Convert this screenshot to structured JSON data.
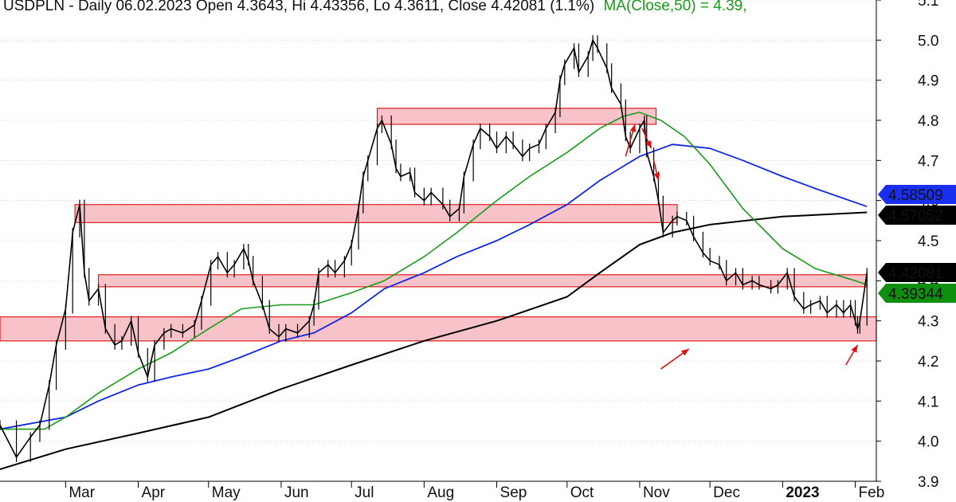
{
  "chart_data": {
    "type": "line",
    "title": "USDPLN - Daily 06.02.2023 Open 4.3643, Hi 4.43356, Lo 4.3611, Close 4.42081 (1.1%)",
    "title_ma": "MA(Close,50) = 4.39,",
    "colors": {
      "price": "#000000",
      "ma50": "#1a9a1a",
      "ma100": "#1428e0",
      "ma200": "#000000",
      "zone_fill": "#f7c2c8",
      "zone_stroke": "#e02020",
      "arrow": "#e01010",
      "label_close_bg": "#000000",
      "label_ma50_bg": "#0f8f0f",
      "label_ma100_bg": "#1a2ef0",
      "grid": "#bbbbbb"
    },
    "y_axis": {
      "range": [
        3.9,
        5.1
      ],
      "ticks": [
        "3.9",
        "4.0",
        "4.1",
        "4.2",
        "4.3",
        "4.4",
        "4.5",
        "4.6",
        "4.7",
        "4.8",
        "4.9",
        "5.0",
        "5.1"
      ],
      "side": "right"
    },
    "x_axis": {
      "range": [
        "2022-02-01",
        "2023-02-10"
      ],
      "labels": [
        {
          "text": "Mar",
          "date": "2022-03-01",
          "bold": false
        },
        {
          "text": "Apr",
          "date": "2022-04-01",
          "bold": false
        },
        {
          "text": "May",
          "date": "2022-05-01",
          "bold": false
        },
        {
          "text": "Jun",
          "date": "2022-06-01",
          "bold": false
        },
        {
          "text": "Jul",
          "date": "2022-07-01",
          "bold": false
        },
        {
          "text": "Aug",
          "date": "2022-08-01",
          "bold": false
        },
        {
          "text": "Sep",
          "date": "2022-09-01",
          "bold": false
        },
        {
          "text": "Oct",
          "date": "2022-10-01",
          "bold": false
        },
        {
          "text": "Nov",
          "date": "2022-11-01",
          "bold": false
        },
        {
          "text": "Dec",
          "date": "2022-12-01",
          "bold": false
        },
        {
          "text": "2023",
          "date": "2023-01-01",
          "bold": true
        },
        {
          "text": "Feb",
          "date": "2023-02-01",
          "bold": false
        }
      ]
    },
    "price_series": [
      [
        "2022-02-01",
        4.04
      ],
      [
        "2022-02-08",
        3.96
      ],
      [
        "2022-02-14",
        4.01
      ],
      [
        "2022-02-18",
        4.04
      ],
      [
        "2022-02-22",
        4.14
      ],
      [
        "2022-02-25",
        4.24
      ],
      [
        "2022-03-01",
        4.33
      ],
      [
        "2022-03-04",
        4.52
      ],
      [
        "2022-03-07",
        4.59
      ],
      [
        "2022-03-09",
        4.42
      ],
      [
        "2022-03-11",
        4.35
      ],
      [
        "2022-03-15",
        4.38
      ],
      [
        "2022-03-18",
        4.28
      ],
      [
        "2022-03-22",
        4.24
      ],
      [
        "2022-03-25",
        4.25
      ],
      [
        "2022-03-29",
        4.3
      ],
      [
        "2022-04-01",
        4.22
      ],
      [
        "2022-04-05",
        4.16
      ],
      [
        "2022-04-08",
        4.24
      ],
      [
        "2022-04-12",
        4.27
      ],
      [
        "2022-04-15",
        4.28
      ],
      [
        "2022-04-20",
        4.27
      ],
      [
        "2022-04-25",
        4.29
      ],
      [
        "2022-04-28",
        4.35
      ],
      [
        "2022-05-02",
        4.44
      ],
      [
        "2022-05-05",
        4.46
      ],
      [
        "2022-05-09",
        4.42
      ],
      [
        "2022-05-12",
        4.44
      ],
      [
        "2022-05-16",
        4.48
      ],
      [
        "2022-05-18",
        4.45
      ],
      [
        "2022-05-20",
        4.4
      ],
      [
        "2022-05-24",
        4.34
      ],
      [
        "2022-05-27",
        4.28
      ],
      [
        "2022-05-31",
        4.26
      ],
      [
        "2022-06-03",
        4.28
      ],
      [
        "2022-06-08",
        4.27
      ],
      [
        "2022-06-13",
        4.3
      ],
      [
        "2022-06-15",
        4.34
      ],
      [
        "2022-06-17",
        4.42
      ],
      [
        "2022-06-21",
        4.44
      ],
      [
        "2022-06-24",
        4.42
      ],
      [
        "2022-06-28",
        4.45
      ],
      [
        "2022-07-01",
        4.49
      ],
      [
        "2022-07-04",
        4.58
      ],
      [
        "2022-07-06",
        4.66
      ],
      [
        "2022-07-08",
        4.7
      ],
      [
        "2022-07-12",
        4.78
      ],
      [
        "2022-07-14",
        4.8
      ],
      [
        "2022-07-18",
        4.74
      ],
      [
        "2022-07-20",
        4.68
      ],
      [
        "2022-07-22",
        4.66
      ],
      [
        "2022-07-26",
        4.67
      ],
      [
        "2022-07-28",
        4.62
      ],
      [
        "2022-08-01",
        4.6
      ],
      [
        "2022-08-04",
        4.62
      ],
      [
        "2022-08-09",
        4.59
      ],
      [
        "2022-08-12",
        4.56
      ],
      [
        "2022-08-16",
        4.58
      ],
      [
        "2022-08-18",
        4.66
      ],
      [
        "2022-08-22",
        4.74
      ],
      [
        "2022-08-25",
        4.78
      ],
      [
        "2022-08-29",
        4.76
      ],
      [
        "2022-09-01",
        4.73
      ],
      [
        "2022-09-05",
        4.76
      ],
      [
        "2022-09-08",
        4.74
      ],
      [
        "2022-09-12",
        4.71
      ],
      [
        "2022-09-15",
        4.73
      ],
      [
        "2022-09-19",
        4.74
      ],
      [
        "2022-09-22",
        4.78
      ],
      [
        "2022-09-26",
        4.82
      ],
      [
        "2022-09-28",
        4.9
      ],
      [
        "2022-09-30",
        4.94
      ],
      [
        "2022-10-04",
        4.98
      ],
      [
        "2022-10-06",
        4.92
      ],
      [
        "2022-10-10",
        4.96
      ],
      [
        "2022-10-12",
        5.0
      ],
      [
        "2022-10-14",
        4.98
      ],
      [
        "2022-10-18",
        4.93
      ],
      [
        "2022-10-20",
        4.88
      ],
      [
        "2022-10-24",
        4.84
      ],
      [
        "2022-10-26",
        4.76
      ],
      [
        "2022-10-28",
        4.73
      ],
      [
        "2022-11-01",
        4.78
      ],
      [
        "2022-11-03",
        4.8
      ],
      [
        "2022-11-04",
        4.72
      ],
      [
        "2022-11-07",
        4.66
      ],
      [
        "2022-11-09",
        4.6
      ],
      [
        "2022-11-11",
        4.52
      ],
      [
        "2022-11-15",
        4.55
      ],
      [
        "2022-11-17",
        4.56
      ],
      [
        "2022-11-21",
        4.55
      ],
      [
        "2022-11-24",
        4.51
      ],
      [
        "2022-11-28",
        4.47
      ],
      [
        "2022-12-01",
        4.45
      ],
      [
        "2022-12-05",
        4.44
      ],
      [
        "2022-12-08",
        4.4
      ],
      [
        "2022-12-12",
        4.42
      ],
      [
        "2022-12-15",
        4.39
      ],
      [
        "2022-12-19",
        4.4
      ],
      [
        "2022-12-22",
        4.39
      ],
      [
        "2022-12-27",
        4.38
      ],
      [
        "2022-12-30",
        4.39
      ],
      [
        "2023-01-03",
        4.42
      ],
      [
        "2023-01-06",
        4.36
      ],
      [
        "2023-01-10",
        4.33
      ],
      [
        "2023-01-13",
        4.34
      ],
      [
        "2023-01-17",
        4.35
      ],
      [
        "2023-01-20",
        4.32
      ],
      [
        "2023-01-24",
        4.34
      ],
      [
        "2023-01-27",
        4.32
      ],
      [
        "2023-01-30",
        4.34
      ],
      [
        "2023-02-01",
        4.3
      ],
      [
        "2023-02-02",
        4.28
      ],
      [
        "2023-02-03",
        4.3
      ],
      [
        "2023-02-06",
        4.42
      ]
    ],
    "ma50_series": [
      [
        "2022-02-01",
        4.03
      ],
      [
        "2022-02-20",
        4.03
      ],
      [
        "2022-03-01",
        4.06
      ],
      [
        "2022-03-15",
        4.12
      ],
      [
        "2022-04-01",
        4.18
      ],
      [
        "2022-04-15",
        4.22
      ],
      [
        "2022-05-01",
        4.28
      ],
      [
        "2022-05-15",
        4.33
      ],
      [
        "2022-06-01",
        4.34
      ],
      [
        "2022-06-15",
        4.34
      ],
      [
        "2022-07-01",
        4.37
      ],
      [
        "2022-07-15",
        4.4
      ],
      [
        "2022-08-01",
        4.46
      ],
      [
        "2022-08-15",
        4.52
      ],
      [
        "2022-09-01",
        4.6
      ],
      [
        "2022-09-15",
        4.66
      ],
      [
        "2022-10-01",
        4.72
      ],
      [
        "2022-10-15",
        4.78
      ],
      [
        "2022-10-25",
        4.81
      ],
      [
        "2022-11-01",
        4.82
      ],
      [
        "2022-11-10",
        4.8
      ],
      [
        "2022-11-20",
        4.76
      ],
      [
        "2022-12-01",
        4.69
      ],
      [
        "2022-12-15",
        4.58
      ],
      [
        "2023-01-01",
        4.48
      ],
      [
        "2023-01-15",
        4.43
      ],
      [
        "2023-02-01",
        4.4
      ],
      [
        "2023-02-06",
        4.39
      ]
    ],
    "ma100_series": [
      [
        "2022-02-01",
        4.03
      ],
      [
        "2022-03-01",
        4.06
      ],
      [
        "2022-03-15",
        4.1
      ],
      [
        "2022-04-01",
        4.14
      ],
      [
        "2022-04-15",
        4.16
      ],
      [
        "2022-05-01",
        4.18
      ],
      [
        "2022-05-15",
        4.21
      ],
      [
        "2022-06-01",
        4.25
      ],
      [
        "2022-06-15",
        4.27
      ],
      [
        "2022-07-01",
        4.32
      ],
      [
        "2022-07-15",
        4.38
      ],
      [
        "2022-08-01",
        4.42
      ],
      [
        "2022-08-15",
        4.46
      ],
      [
        "2022-09-01",
        4.5
      ],
      [
        "2022-09-15",
        4.54
      ],
      [
        "2022-10-01",
        4.59
      ],
      [
        "2022-10-15",
        4.65
      ],
      [
        "2022-11-01",
        4.71
      ],
      [
        "2022-11-15",
        4.74
      ],
      [
        "2022-12-01",
        4.73
      ],
      [
        "2022-12-15",
        4.7
      ],
      [
        "2023-01-01",
        4.66
      ],
      [
        "2023-01-15",
        4.63
      ],
      [
        "2023-02-06",
        4.585
      ]
    ],
    "ma200_series": [
      [
        "2022-02-01",
        3.93
      ],
      [
        "2022-03-01",
        3.98
      ],
      [
        "2022-04-01",
        4.02
      ],
      [
        "2022-05-01",
        4.06
      ],
      [
        "2022-06-01",
        4.13
      ],
      [
        "2022-07-01",
        4.19
      ],
      [
        "2022-08-01",
        4.25
      ],
      [
        "2022-09-01",
        4.3
      ],
      [
        "2022-10-01",
        4.36
      ],
      [
        "2022-10-15",
        4.42
      ],
      [
        "2022-11-01",
        4.49
      ],
      [
        "2022-11-15",
        4.52
      ],
      [
        "2022-12-01",
        4.54
      ],
      [
        "2023-01-01",
        4.56
      ],
      [
        "2023-02-06",
        4.5705
      ]
    ],
    "zones": [
      {
        "from": "2022-07-12",
        "to": "2022-11-08",
        "low": 4.79,
        "high": 4.83
      },
      {
        "from": "2022-03-05",
        "to": "2022-11-17",
        "low": 4.545,
        "high": 4.59
      },
      {
        "from": "2022-03-15",
        "to": "2023-02-06",
        "low": 4.385,
        "high": 4.415
      },
      {
        "from": "2022-02-01",
        "to": "2023-02-10",
        "low": 4.25,
        "high": 4.31
      }
    ],
    "arrows": [
      {
        "from": [
          "2022-10-26",
          4.71
        ],
        "to": [
          "2022-10-30",
          4.79
        ]
      },
      {
        "from": [
          "2022-11-02",
          4.78
        ],
        "to": [
          "2022-11-06",
          4.73
        ]
      },
      {
        "from": [
          "2022-11-07",
          4.7
        ],
        "to": [
          "2022-11-09",
          4.65
        ]
      },
      {
        "from": [
          "2022-11-10",
          4.18
        ],
        "to": [
          "2022-11-22",
          4.23
        ]
      },
      {
        "from": [
          "2023-01-28",
          4.19
        ],
        "to": [
          "2023-02-02",
          4.24
        ]
      }
    ],
    "value_labels": [
      {
        "text": "4.58509",
        "value": 4.58509,
        "series": "ma100"
      },
      {
        "text": "4.57052",
        "value": 4.57052,
        "series": "ma200"
      },
      {
        "text": "4.42081",
        "value": 4.42081,
        "series": "close"
      },
      {
        "text": "4.39344",
        "value": 4.39344,
        "series": "ma50"
      }
    ]
  }
}
